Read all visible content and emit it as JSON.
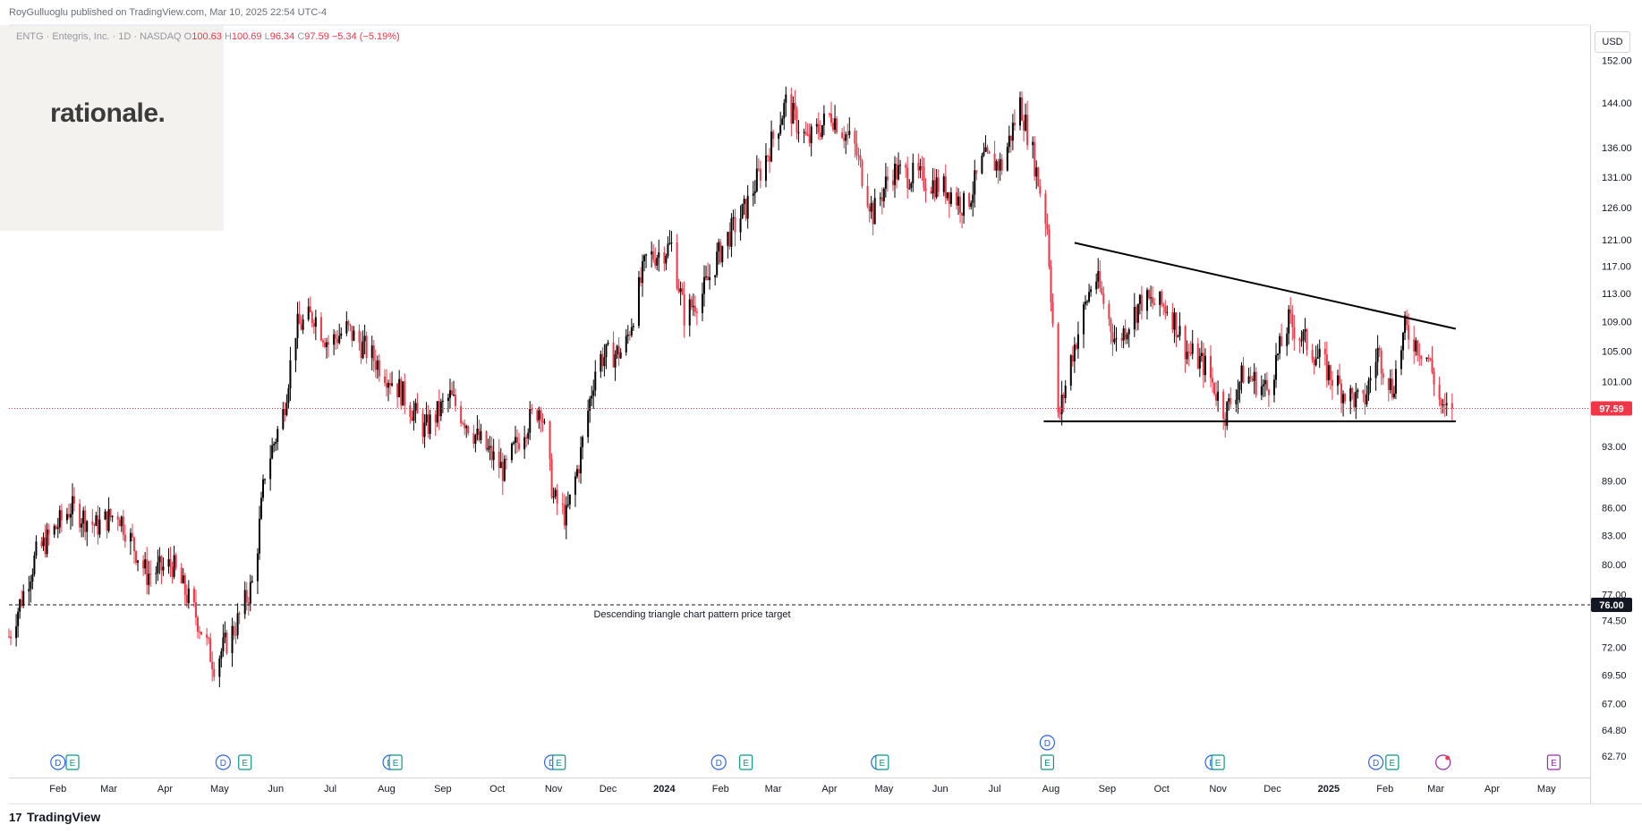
{
  "header": {
    "published": "RoyGulluoglu published on TradingView.com, Mar 10, 2025 22:54 UTC-4"
  },
  "legend": {
    "symbol": "ENTG · Entegris, Inc. · 1D · NASDAQ",
    "open_label": "O",
    "open": "100.63",
    "high_label": "H",
    "high": "100.69",
    "low_label": "L",
    "low": "96.34",
    "close_label": "C",
    "close": "97.59",
    "change": "−5.34 (−5.19%)"
  },
  "logo": {
    "text": "rationale."
  },
  "currency": "USD",
  "footer": {
    "brand": "TradingView",
    "icon": "tradingview-logo-icon"
  },
  "colors": {
    "up": "#000000",
    "down": "#f23645",
    "price_line": "#f23645",
    "event_dividend": "#2962ff",
    "event_earnings": "#089981"
  },
  "chart_data": {
    "type": "candlestick",
    "y_scale": "log",
    "ylim": [
      61,
      159
    ],
    "y_ticks": [
      "152.00",
      "144.00",
      "136.00",
      "131.00",
      "126.00",
      "121.00",
      "117.00",
      "113.00",
      "109.00",
      "105.00",
      "101.00",
      "93.00",
      "89.00",
      "86.00",
      "83.00",
      "80.00",
      "77.00",
      "74.50",
      "72.00",
      "69.50",
      "67.00",
      "64.80",
      "62.70"
    ],
    "y_tick_values": [
      152,
      144,
      136,
      131,
      126,
      121,
      117,
      113,
      109,
      105,
      101,
      93,
      89,
      86,
      83,
      80,
      77,
      74.5,
      72,
      69.5,
      67,
      64.8,
      62.7
    ],
    "x_ticks": [
      "Feb",
      "Mar",
      "Apr",
      "May",
      "Jun",
      "Jul",
      "Aug",
      "Sep",
      "Oct",
      "Nov",
      "Dec",
      "2024",
      "Feb",
      "Mar",
      "Apr",
      "May",
      "Jun",
      "Jul",
      "Aug",
      "Sep",
      "Oct",
      "Nov",
      "Dec",
      "2025",
      "Feb",
      "Mar",
      "Apr",
      "May"
    ],
    "x_tick_dates": [
      "2023-02-01",
      "2023-03-01",
      "2023-04-01",
      "2023-05-01",
      "2023-06-01",
      "2023-07-01",
      "2023-08-01",
      "2023-09-01",
      "2023-10-01",
      "2023-11-01",
      "2023-12-01",
      "2024-01-01",
      "2024-02-01",
      "2024-03-01",
      "2024-04-01",
      "2024-05-01",
      "2024-06-01",
      "2024-07-01",
      "2024-08-01",
      "2024-09-01",
      "2024-10-01",
      "2024-11-01",
      "2024-12-01",
      "2025-01-01",
      "2025-02-01",
      "2025-03-01",
      "2025-04-01",
      "2025-05-01"
    ],
    "x_range": [
      "2023-01-05",
      "2025-05-25"
    ],
    "price_path": [
      {
        "date": "2023-01-05",
        "price": 73
      },
      {
        "date": "2023-01-20",
        "price": 81
      },
      {
        "date": "2023-02-08",
        "price": 86
      },
      {
        "date": "2023-02-22",
        "price": 84
      },
      {
        "date": "2023-03-06",
        "price": 85.5
      },
      {
        "date": "2023-03-22",
        "price": 79
      },
      {
        "date": "2023-04-05",
        "price": 80
      },
      {
        "date": "2023-04-18",
        "price": 75
      },
      {
        "date": "2023-04-28",
        "price": 70.5
      },
      {
        "date": "2023-05-10",
        "price": 74
      },
      {
        "date": "2023-05-20",
        "price": 78.5
      },
      {
        "date": "2023-05-26",
        "price": 90
      },
      {
        "date": "2023-06-05",
        "price": 97
      },
      {
        "date": "2023-06-12",
        "price": 108
      },
      {
        "date": "2023-06-22",
        "price": 110
      },
      {
        "date": "2023-06-30",
        "price": 106
      },
      {
        "date": "2023-07-10",
        "price": 108
      },
      {
        "date": "2023-07-25",
        "price": 104
      },
      {
        "date": "2023-08-08",
        "price": 100
      },
      {
        "date": "2023-08-22",
        "price": 95
      },
      {
        "date": "2023-09-05",
        "price": 99
      },
      {
        "date": "2023-09-20",
        "price": 94
      },
      {
        "date": "2023-10-05",
        "price": 90
      },
      {
        "date": "2023-10-15",
        "price": 95
      },
      {
        "date": "2023-10-25",
        "price": 98
      },
      {
        "date": "2023-11-01",
        "price": 87
      },
      {
        "date": "2023-11-08",
        "price": 85
      },
      {
        "date": "2023-11-15",
        "price": 91
      },
      {
        "date": "2023-11-25",
        "price": 104
      },
      {
        "date": "2023-12-10",
        "price": 105
      },
      {
        "date": "2023-12-22",
        "price": 118
      },
      {
        "date": "2024-01-05",
        "price": 120
      },
      {
        "date": "2024-01-12",
        "price": 110
      },
      {
        "date": "2024-01-22",
        "price": 113
      },
      {
        "date": "2024-02-02",
        "price": 120
      },
      {
        "date": "2024-02-15",
        "price": 126
      },
      {
        "date": "2024-02-28",
        "price": 136
      },
      {
        "date": "2024-03-08",
        "price": 144
      },
      {
        "date": "2024-03-20",
        "price": 137
      },
      {
        "date": "2024-04-02",
        "price": 142
      },
      {
        "date": "2024-04-15",
        "price": 136
      },
      {
        "date": "2024-04-25",
        "price": 125
      },
      {
        "date": "2024-05-05",
        "price": 132
      },
      {
        "date": "2024-05-20",
        "price": 131
      },
      {
        "date": "2024-06-05",
        "price": 129
      },
      {
        "date": "2024-06-15",
        "price": 126
      },
      {
        "date": "2024-06-25",
        "price": 134
      },
      {
        "date": "2024-07-05",
        "price": 133
      },
      {
        "date": "2024-07-15",
        "price": 144
      },
      {
        "date": "2024-07-22",
        "price": 135
      },
      {
        "date": "2024-07-30",
        "price": 123
      },
      {
        "date": "2024-08-05",
        "price": 96
      },
      {
        "date": "2024-08-12",
        "price": 104
      },
      {
        "date": "2024-08-25",
        "price": 116
      },
      {
        "date": "2024-09-06",
        "price": 106
      },
      {
        "date": "2024-09-20",
        "price": 112
      },
      {
        "date": "2024-10-05",
        "price": 111
      },
      {
        "date": "2024-10-15",
        "price": 105
      },
      {
        "date": "2024-10-25",
        "price": 103
      },
      {
        "date": "2024-11-05",
        "price": 97
      },
      {
        "date": "2024-11-15",
        "price": 102
      },
      {
        "date": "2024-11-28",
        "price": 100
      },
      {
        "date": "2024-12-10",
        "price": 109
      },
      {
        "date": "2024-12-20",
        "price": 106
      },
      {
        "date": "2025-01-08",
        "price": 100
      },
      {
        "date": "2025-01-20",
        "price": 98
      },
      {
        "date": "2025-01-28",
        "price": 105
      },
      {
        "date": "2025-02-05",
        "price": 100
      },
      {
        "date": "2025-02-12",
        "price": 108
      },
      {
        "date": "2025-02-25",
        "price": 104
      },
      {
        "date": "2025-03-05",
        "price": 97
      },
      {
        "date": "2025-03-10",
        "price": 97.59
      }
    ],
    "last_close": 97.59,
    "last_close_label": "97.59",
    "target": 76.0,
    "target_label": "76.00",
    "target_annotation": "Descending triangle chart pattern price target",
    "trendlines": [
      {
        "name": "descending-resistance",
        "from": {
          "date": "2024-08-14",
          "price": 120.5
        },
        "to": {
          "date": "2025-03-12",
          "price": 108
        }
      },
      {
        "name": "horizontal-support",
        "from": {
          "date": "2024-07-28",
          "price": 96
        },
        "to": {
          "date": "2025-03-12",
          "price": 96
        }
      }
    ],
    "events": [
      {
        "date": "2023-02-01",
        "type": "D"
      },
      {
        "date": "2023-02-09",
        "type": "E"
      },
      {
        "date": "2023-05-03",
        "type": "D"
      },
      {
        "date": "2023-05-15",
        "type": "E"
      },
      {
        "date": "2023-08-03",
        "type": "D"
      },
      {
        "date": "2023-08-06",
        "type": "E"
      },
      {
        "date": "2023-10-31",
        "type": "D"
      },
      {
        "date": "2023-11-04",
        "type": "E"
      },
      {
        "date": "2024-01-31",
        "type": "D"
      },
      {
        "date": "2024-02-15",
        "type": "E"
      },
      {
        "date": "2024-04-28",
        "type": "D"
      },
      {
        "date": "2024-04-30",
        "type": "E"
      },
      {
        "date": "2024-07-30",
        "type": "D",
        "row": 2
      },
      {
        "date": "2024-07-30",
        "type": "E"
      },
      {
        "date": "2024-10-29",
        "type": "D"
      },
      {
        "date": "2024-11-01",
        "type": "E"
      },
      {
        "date": "2025-01-27",
        "type": "D"
      },
      {
        "date": "2025-02-05",
        "type": "E"
      },
      {
        "date": "2025-03-05",
        "type": "split"
      },
      {
        "date": "2025-05-05",
        "type": "E",
        "future": true
      }
    ]
  }
}
